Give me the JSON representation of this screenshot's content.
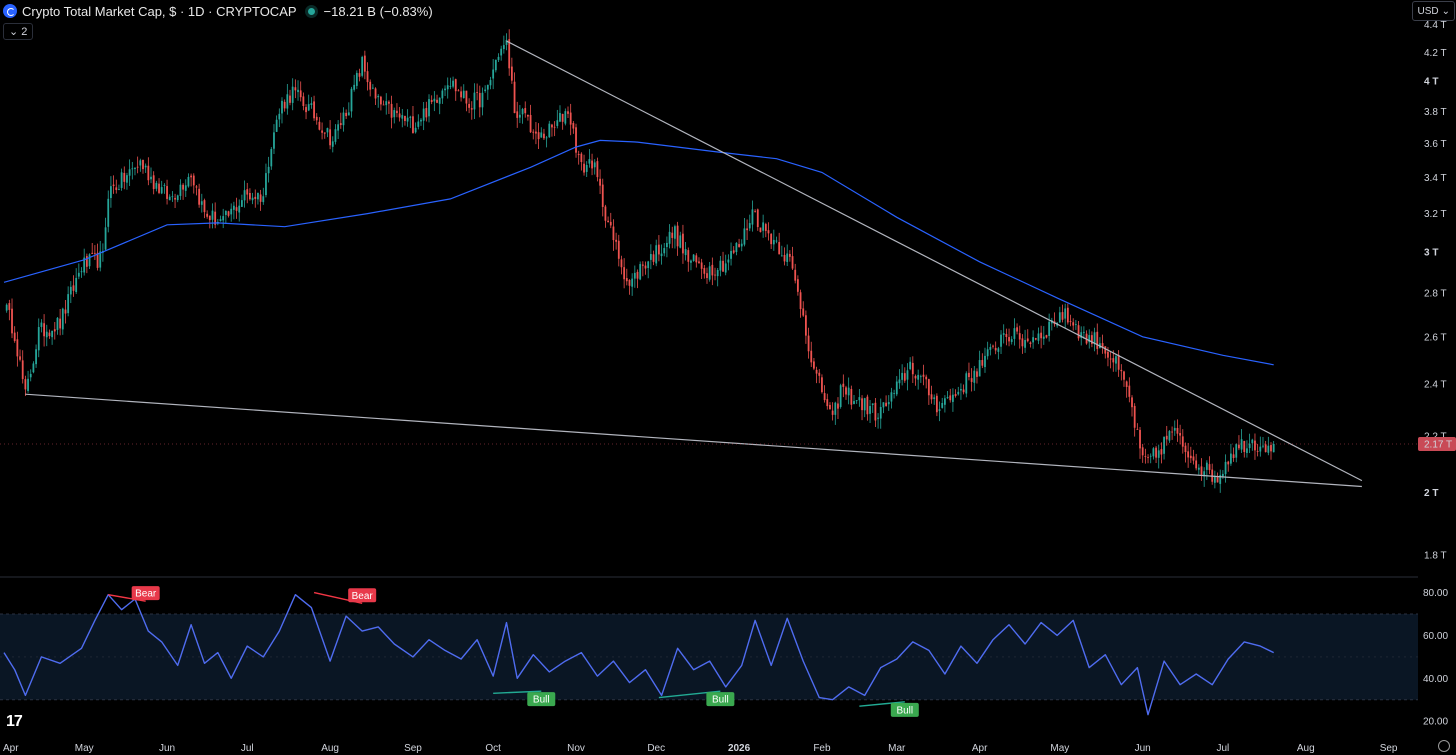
{
  "header": {
    "title": "Crypto Total Market Cap, $ · 1D · CRYPTOCAP",
    "change": "−18.21 B (−0.83%)",
    "indicator_count": "2",
    "currency": "USD"
  },
  "colors": {
    "up": "#26a69a",
    "down": "#ef5350",
    "ma": "#2962ff",
    "rsi": "#4f6cf0",
    "trendline": "#b2b5be",
    "price_label_bg": "#c94a56"
  },
  "chart_data": [
    {
      "type": "candlestick",
      "title": "Crypto Total Market Cap",
      "y_scale": "log",
      "ylim": [
        1.74,
        4.42
      ],
      "x_ticks": [
        "Apr",
        "May",
        "Jun",
        "Jul",
        "Aug",
        "Sep",
        "Oct",
        "Nov",
        "Dec",
        "2026",
        "Feb",
        "Mar",
        "Apr",
        "May",
        "Jun",
        "Jul",
        "Aug",
        "Sep"
      ],
      "y_ticks": [
        "1.8 T",
        "2 T",
        "2.2 T",
        "2.4 T",
        "2.6 T",
        "2.8 T",
        "3 T",
        "3.2 T",
        "3.4 T",
        "3.6 T",
        "3.8 T",
        "4 T",
        "4.2 T",
        "4.4 T"
      ],
      "last_price_label": "2.17 T",
      "close_path": [
        [
          "2025-04-01",
          2.75
        ],
        [
          "2025-04-05",
          2.62
        ],
        [
          "2025-04-09",
          2.35
        ],
        [
          "2025-04-14",
          2.62
        ],
        [
          "2025-04-22",
          2.66
        ],
        [
          "2025-04-30",
          2.93
        ],
        [
          "2025-05-08",
          2.97
        ],
        [
          "2025-05-10",
          3.32
        ],
        [
          "2025-05-15",
          3.38
        ],
        [
          "2025-05-22",
          3.49
        ],
        [
          "2025-05-27",
          3.38
        ],
        [
          "2025-06-02",
          3.28
        ],
        [
          "2025-06-10",
          3.43
        ],
        [
          "2025-06-15",
          3.2
        ],
        [
          "2025-06-22",
          3.15
        ],
        [
          "2025-06-30",
          3.3
        ],
        [
          "2025-07-07",
          3.3
        ],
        [
          "2025-07-10",
          3.62
        ],
        [
          "2025-07-14",
          3.85
        ],
        [
          "2025-07-18",
          3.93
        ],
        [
          "2025-07-25",
          3.8
        ],
        [
          "2025-08-02",
          3.62
        ],
        [
          "2025-08-08",
          3.85
        ],
        [
          "2025-08-13",
          4.12
        ],
        [
          "2025-08-18",
          3.87
        ],
        [
          "2025-08-25",
          3.78
        ],
        [
          "2025-09-01",
          3.72
        ],
        [
          "2025-09-08",
          3.85
        ],
        [
          "2025-09-14",
          4.02
        ],
        [
          "2025-09-22",
          3.85
        ],
        [
          "2025-09-28",
          3.9
        ],
        [
          "2025-10-03",
          4.2
        ],
        [
          "2025-10-06",
          4.25
        ],
        [
          "2025-10-10",
          3.72
        ],
        [
          "2025-10-13",
          3.8
        ],
        [
          "2025-10-17",
          3.62
        ],
        [
          "2025-10-24",
          3.7
        ],
        [
          "2025-10-29",
          3.82
        ],
        [
          "2025-11-03",
          3.45
        ],
        [
          "2025-11-07",
          3.5
        ],
        [
          "2025-11-14",
          3.1
        ],
        [
          "2025-11-21",
          2.83
        ],
        [
          "2025-11-25",
          2.92
        ],
        [
          "2025-12-01",
          3.0
        ],
        [
          "2025-12-08",
          3.1
        ],
        [
          "2025-12-13",
          2.96
        ],
        [
          "2025-12-20",
          2.91
        ],
        [
          "2025-12-27",
          2.95
        ],
        [
          "2026-01-02",
          3.05
        ],
        [
          "2026-01-06",
          3.22
        ],
        [
          "2026-01-10",
          3.12
        ],
        [
          "2026-01-15",
          3.05
        ],
        [
          "2026-01-20",
          2.95
        ],
        [
          "2026-01-25",
          2.7
        ],
        [
          "2026-01-29",
          2.45
        ],
        [
          "2026-02-02",
          2.35
        ],
        [
          "2026-02-05",
          2.25
        ],
        [
          "2026-02-08",
          2.38
        ],
        [
          "2026-02-15",
          2.33
        ],
        [
          "2026-02-22",
          2.28
        ],
        [
          "2026-02-28",
          2.36
        ],
        [
          "2026-03-06",
          2.48
        ],
        [
          "2026-03-10",
          2.42
        ],
        [
          "2026-03-16",
          2.32
        ],
        [
          "2026-03-22",
          2.35
        ],
        [
          "2026-03-30",
          2.45
        ],
        [
          "2026-04-06",
          2.54
        ],
        [
          "2026-04-10",
          2.62
        ],
        [
          "2026-04-18",
          2.58
        ],
        [
          "2026-04-25",
          2.62
        ],
        [
          "2026-05-01",
          2.7
        ],
        [
          "2026-05-05",
          2.68
        ],
        [
          "2026-05-10",
          2.6
        ],
        [
          "2026-05-16",
          2.58
        ],
        [
          "2026-05-22",
          2.48
        ],
        [
          "2026-05-27",
          2.35
        ],
        [
          "2026-06-01",
          2.1
        ],
        [
          "2026-06-06",
          2.13
        ],
        [
          "2026-06-12",
          2.22
        ],
        [
          "2026-06-17",
          2.15
        ],
        [
          "2026-06-24",
          2.08
        ],
        [
          "2026-06-29",
          2.05
        ],
        [
          "2026-07-04",
          2.14
        ],
        [
          "2026-07-10",
          2.18
        ],
        [
          "2026-07-16",
          2.17
        ],
        [
          "2026-07-20",
          2.17
        ]
      ],
      "moving_average": [
        [
          "2025-04-01",
          2.85
        ],
        [
          "2025-05-01",
          2.96
        ],
        [
          "2025-06-01",
          3.14
        ],
        [
          "2025-06-20",
          3.15
        ],
        [
          "2025-07-15",
          3.13
        ],
        [
          "2025-08-15",
          3.2
        ],
        [
          "2025-09-15",
          3.28
        ],
        [
          "2025-10-15",
          3.46
        ],
        [
          "2025-11-01",
          3.58
        ],
        [
          "2025-11-10",
          3.62
        ],
        [
          "2025-11-24",
          3.61
        ],
        [
          "2025-12-24",
          3.55
        ],
        [
          "2026-01-15",
          3.51
        ],
        [
          "2026-02-01",
          3.43
        ],
        [
          "2026-03-01",
          3.18
        ],
        [
          "2026-04-01",
          2.95
        ],
        [
          "2026-05-01",
          2.77
        ],
        [
          "2026-06-01",
          2.6
        ],
        [
          "2026-07-01",
          2.52
        ],
        [
          "2026-07-20",
          2.48
        ]
      ],
      "trendlines": [
        {
          "from": [
            "2025-04-09",
            2.36
          ],
          "to": [
            "2026-08-22",
            2.02
          ]
        },
        {
          "from": [
            "2025-10-06",
            4.28
          ],
          "to": [
            "2026-08-22",
            2.04
          ]
        }
      ]
    },
    {
      "type": "line",
      "title": "",
      "ylim": [
        14,
        84
      ],
      "y_ticks": [
        "20.00",
        "40.00",
        "60.00",
        "80.00"
      ],
      "band": [
        30,
        70
      ],
      "midline": 50,
      "series": [
        {
          "x": [
            "2025-04-01",
            "2025-04-05",
            "2025-04-09",
            "2025-04-15",
            "2025-04-22",
            "2025-04-30",
            "2025-05-05",
            "2025-05-10",
            "2025-05-15",
            "2025-05-20",
            "2025-05-25",
            "2025-05-30",
            "2025-06-05",
            "2025-06-10",
            "2025-06-15",
            "2025-06-20",
            "2025-06-25",
            "2025-07-01",
            "2025-07-07",
            "2025-07-13",
            "2025-07-19",
            "2025-07-25",
            "2025-08-01",
            "2025-08-07",
            "2025-08-13",
            "2025-08-19",
            "2025-08-25",
            "2025-09-01",
            "2025-09-07",
            "2025-09-13",
            "2025-09-19",
            "2025-09-25",
            "2025-10-01",
            "2025-10-06",
            "2025-10-10",
            "2025-10-16",
            "2025-10-22",
            "2025-10-28",
            "2025-11-03",
            "2025-11-09",
            "2025-11-15",
            "2025-11-21",
            "2025-11-27",
            "2025-12-03",
            "2025-12-09",
            "2025-12-15",
            "2025-12-21",
            "2025-12-27",
            "2026-01-02",
            "2026-01-07",
            "2026-01-13",
            "2026-01-19",
            "2026-01-25",
            "2026-01-31",
            "2026-02-05",
            "2026-02-11",
            "2026-02-17",
            "2026-02-23",
            "2026-03-01",
            "2026-03-07",
            "2026-03-13",
            "2026-03-19",
            "2026-03-25",
            "2026-03-31",
            "2026-04-06",
            "2026-04-12",
            "2026-04-18",
            "2026-04-24",
            "2026-04-30",
            "2026-05-06",
            "2026-05-12",
            "2026-05-18",
            "2026-05-24",
            "2026-05-30",
            "2026-06-03",
            "2026-06-09",
            "2026-06-15",
            "2026-06-21",
            "2026-06-27",
            "2026-07-03",
            "2026-07-09",
            "2026-07-15",
            "2026-07-20"
          ],
          "values": [
            52,
            44,
            32,
            50,
            47,
            54,
            67,
            79,
            72,
            77,
            62,
            57,
            46,
            65,
            47,
            52,
            40,
            55,
            50,
            62,
            79,
            73,
            48,
            69,
            62,
            64,
            56,
            50,
            58,
            53,
            49,
            58,
            41,
            66,
            40,
            51,
            43,
            48,
            52,
            41,
            48,
            38,
            44,
            32,
            54,
            44,
            48,
            36,
            46,
            67,
            46,
            68,
            48,
            31,
            30,
            36,
            32,
            45,
            49,
            57,
            53,
            42,
            55,
            47,
            58,
            65,
            56,
            66,
            60,
            67,
            45,
            51,
            37,
            45,
            23,
            48,
            37,
            42,
            37,
            49,
            57,
            55,
            52
          ]
        }
      ],
      "annotations": [
        {
          "label": "Bear",
          "kind": "bearish-divergence",
          "from": [
            "2025-05-10",
            79
          ],
          "to": [
            "2025-05-24",
            76
          ]
        },
        {
          "label": "Bear",
          "kind": "bearish-divergence",
          "from": [
            "2025-07-26",
            80
          ],
          "to": [
            "2025-08-13",
            75
          ]
        },
        {
          "label": "Bull",
          "kind": "bullish-divergence",
          "from": [
            "2025-10-01",
            33
          ],
          "to": [
            "2025-10-19",
            34
          ]
        },
        {
          "label": "Bull",
          "kind": "bullish-divergence",
          "from": [
            "2025-12-02",
            31
          ],
          "to": [
            "2025-12-25",
            34
          ]
        },
        {
          "label": "Bull",
          "kind": "bullish-divergence",
          "from": [
            "2026-02-15",
            27
          ],
          "to": [
            "2026-03-04",
            29
          ]
        }
      ]
    }
  ]
}
